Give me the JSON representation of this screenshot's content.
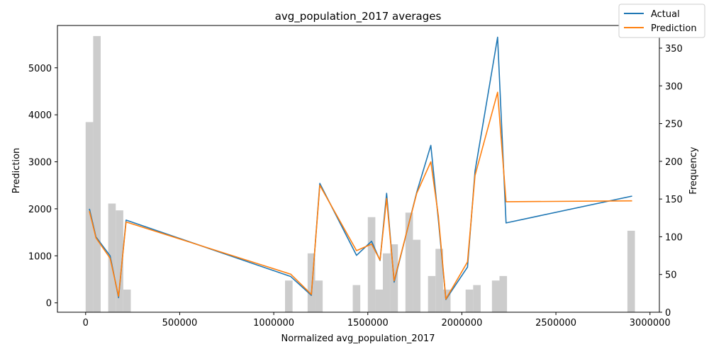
{
  "chart_data": {
    "type": "line",
    "title": "avg_population_2017 averages",
    "xlabel": "Normalized avg_population_2017",
    "ylabel": "Prediction",
    "y2label": "Frequency",
    "xlim": [
      -150000,
      3050000
    ],
    "ylim": [
      -200,
      5900
    ],
    "y2lim": [
      0,
      380
    ],
    "x_ticks": [
      0,
      500000,
      1000000,
      1500000,
      2000000,
      2500000,
      3000000
    ],
    "x_tick_labels": [
      "0",
      "500000",
      "1000000",
      "1500000",
      "2000000",
      "2500000",
      "3000000"
    ],
    "y_ticks": [
      0,
      1000,
      2000,
      3000,
      4000,
      5000
    ],
    "y_tick_labels": [
      "0",
      "1000",
      "2000",
      "3000",
      "4000",
      "5000"
    ],
    "y2_ticks": [
      0,
      50,
      100,
      150,
      200,
      250,
      300,
      350
    ],
    "y2_tick_labels": [
      "0",
      "50",
      "100",
      "150",
      "200",
      "250",
      "300",
      "350"
    ],
    "legend_position": "top-right",
    "grid": false,
    "series": [
      {
        "name": "Actual",
        "color": "#1f77b4",
        "x": [
          20000,
          55000,
          130000,
          175000,
          215000,
          1090000,
          1200000,
          1245000,
          1440000,
          1520000,
          1565000,
          1600000,
          1640000,
          1760000,
          1835000,
          1875000,
          1915000,
          2030000,
          2070000,
          2190000,
          2235000,
          2905000
        ],
        "y": [
          2000,
          1400,
          1000,
          110,
          1760,
          560,
          160,
          2540,
          1010,
          1310,
          900,
          2330,
          440,
          2350,
          3350,
          1770,
          70,
          760,
          2800,
          5650,
          1700,
          2270
        ]
      },
      {
        "name": "Prediction",
        "color": "#ff7f0e",
        "x": [
          20000,
          55000,
          130000,
          175000,
          215000,
          1090000,
          1200000,
          1245000,
          1440000,
          1520000,
          1565000,
          1600000,
          1640000,
          1760000,
          1835000,
          1875000,
          1915000,
          2030000,
          2070000,
          2190000,
          2235000,
          2905000
        ],
        "y": [
          1950,
          1380,
          950,
          140,
          1720,
          610,
          180,
          2500,
          1110,
          1250,
          910,
          2220,
          470,
          2330,
          3000,
          1850,
          80,
          870,
          2710,
          4480,
          2150,
          2170
        ]
      }
    ],
    "histogram": {
      "name": "Frequency",
      "color": "#cccccc",
      "bin_width": 40000,
      "bins": [
        {
          "x": 0,
          "count": 252
        },
        {
          "x": 40000,
          "count": 366
        },
        {
          "x": 120000,
          "count": 144
        },
        {
          "x": 160000,
          "count": 135
        },
        {
          "x": 200000,
          "count": 30
        },
        {
          "x": 1060000,
          "count": 42
        },
        {
          "x": 1180000,
          "count": 78
        },
        {
          "x": 1220000,
          "count": 42
        },
        {
          "x": 1420000,
          "count": 36
        },
        {
          "x": 1500000,
          "count": 126
        },
        {
          "x": 1540000,
          "count": 30
        },
        {
          "x": 1580000,
          "count": 78
        },
        {
          "x": 1620000,
          "count": 90
        },
        {
          "x": 1700000,
          "count": 132
        },
        {
          "x": 1740000,
          "count": 96
        },
        {
          "x": 1820000,
          "count": 48
        },
        {
          "x": 1860000,
          "count": 84
        },
        {
          "x": 1900000,
          "count": 30
        },
        {
          "x": 2020000,
          "count": 30
        },
        {
          "x": 2060000,
          "count": 36
        },
        {
          "x": 2160000,
          "count": 42
        },
        {
          "x": 2200000,
          "count": 48
        },
        {
          "x": 2880000,
          "count": 108
        }
      ]
    }
  }
}
